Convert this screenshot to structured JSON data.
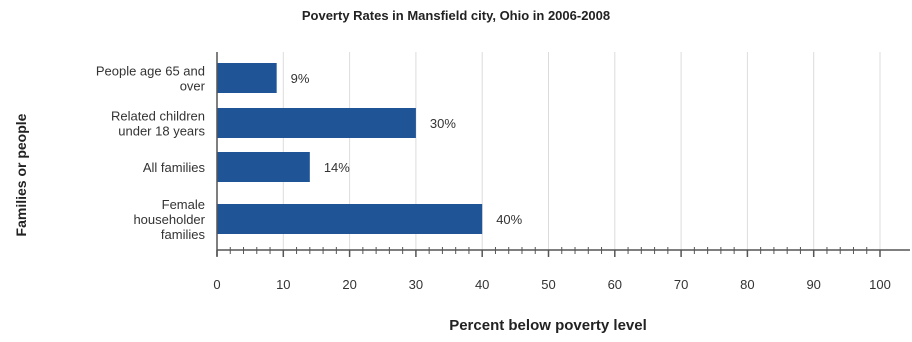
{
  "chart_data": {
    "type": "bar",
    "orientation": "horizontal",
    "title": "Poverty Rates in Mansfield city, Ohio in 2006-2008",
    "xlabel": "Percent below poverty level",
    "ylabel": "Families or people",
    "categories": [
      [
        "People age 65 and",
        "over"
      ],
      [
        "Related children",
        "under 18 years"
      ],
      [
        "All families"
      ],
      [
        "Female",
        "householder",
        "families"
      ]
    ],
    "values": [
      9,
      30,
      14,
      40
    ],
    "data_labels": [
      "9%",
      "30%",
      "14%",
      "40%"
    ],
    "xlim": [
      0,
      100
    ],
    "xticks": [
      0,
      10,
      20,
      30,
      40,
      50,
      60,
      70,
      80,
      90,
      100
    ],
    "grid": true,
    "bar_color": "#1f5597"
  }
}
